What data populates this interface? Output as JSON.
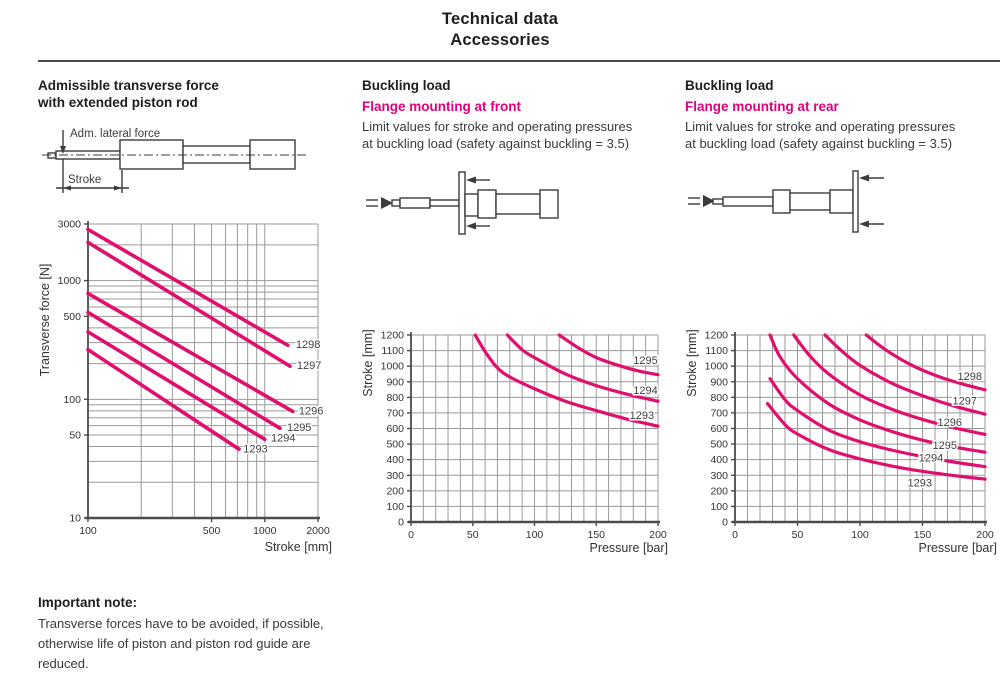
{
  "page": {
    "title_line1": "Technical data",
    "title_line2": "Accessories"
  },
  "colors": {
    "accent": "#e2007d",
    "curve": "#e00f6e",
    "grid": "#9a9a9a",
    "axis": "#4c4c4c",
    "tick_text": "#333333",
    "curve_label_text": "#3f3f3f"
  },
  "sections": {
    "left": {
      "heading_line1": "Admissible transverse force",
      "heading_line2": "with extended piston rod",
      "diagram_labels": {
        "force": "Adm. lateral force",
        "stroke": "Stroke"
      }
    },
    "middle": {
      "heading": "Buckling load",
      "subheading": "Flange mounting at front",
      "desc_line1": "Limit values for stroke and operating pressures",
      "desc_line2": "at buckling load (safety against buckling = 3.5)"
    },
    "right": {
      "heading": "Buckling load",
      "subheading": "Flange mounting at rear",
      "desc_line1": "Limit values for stroke and operating pressures",
      "desc_line2": "at buckling load (safety against buckling = 3.5)"
    },
    "note": {
      "heading": "Important note:",
      "body": "Transverse forces have to be avoided, if possible, otherwise life of piston and piston rod guide are reduced."
    }
  },
  "chart_data": [
    {
      "id": "transverse-force",
      "type": "line",
      "x_scale": "log",
      "y_scale": "log",
      "xlabel": "Stroke [mm]",
      "ylabel": "Transverse force [N]",
      "xlim": [
        100,
        2000
      ],
      "ylim": [
        10,
        3000
      ],
      "x_gridlines": [
        200,
        300,
        400,
        500,
        600,
        700,
        800,
        900,
        1000,
        2000
      ],
      "y_gridlines": [
        20,
        30,
        40,
        50,
        60,
        70,
        80,
        90,
        100,
        200,
        300,
        400,
        500,
        600,
        700,
        800,
        900,
        1000,
        2000,
        3000
      ],
      "x_tick_labels": [
        {
          "v": 100,
          "t": "100"
        },
        {
          "v": 500,
          "t": "500"
        },
        {
          "v": 1000,
          "t": "1000"
        },
        {
          "v": 2000,
          "t": "2000"
        }
      ],
      "y_tick_labels": [
        {
          "v": 3000,
          "t": "3000"
        },
        {
          "v": 1000,
          "t": "1000"
        },
        {
          "v": 500,
          "t": "500"
        },
        {
          "v": 100,
          "t": "100"
        },
        {
          "v": 50,
          "t": "50"
        },
        {
          "v": 10,
          "t": "10"
        }
      ],
      "series": [
        {
          "name": "1293",
          "points": [
            [
              100,
              262
            ],
            [
              715,
              38
            ]
          ],
          "label_at": [
            755,
            38
          ]
        },
        {
          "name": "1294",
          "points": [
            [
              100,
              370
            ],
            [
              1000,
              46
            ]
          ],
          "label_at": [
            1085,
            47
          ]
        },
        {
          "name": "1295",
          "points": [
            [
              100,
              540
            ],
            [
              1220,
              57
            ]
          ],
          "label_at": [
            1335,
            58
          ]
        },
        {
          "name": "1296",
          "points": [
            [
              100,
              780
            ],
            [
              1440,
              79
            ]
          ],
          "label_at": [
            1560,
            80
          ]
        },
        {
          "name": "1297",
          "points": [
            [
              100,
              2100
            ],
            [
              1390,
              190
            ]
          ],
          "label_at": [
            1520,
            193
          ]
        },
        {
          "name": "1298",
          "points": [
            [
              100,
              2700
            ],
            [
              1350,
              285
            ]
          ],
          "label_at": [
            1500,
            290
          ]
        }
      ]
    },
    {
      "id": "buckling-front",
      "type": "line",
      "x_scale": "linear",
      "y_scale": "linear",
      "xlabel": "Pressure [bar]",
      "ylabel": "Stroke [mm]",
      "xlim": [
        0,
        200
      ],
      "ylim": [
        0,
        1200
      ],
      "x_grid_step": 10,
      "y_grid_step": 100,
      "x_tick_labels": [
        {
          "v": 0,
          "t": "0"
        },
        {
          "v": 50,
          "t": "50"
        },
        {
          "v": 100,
          "t": "100"
        },
        {
          "v": 150,
          "t": "150"
        },
        {
          "v": 200,
          "t": "200"
        }
      ],
      "y_tick_labels": [
        {
          "v": 0,
          "t": "0"
        },
        {
          "v": 100,
          "t": "100"
        },
        {
          "v": 200,
          "t": "200"
        },
        {
          "v": 300,
          "t": "300"
        },
        {
          "v": 400,
          "t": "400"
        },
        {
          "v": 500,
          "t": "500"
        },
        {
          "v": 600,
          "t": "600"
        },
        {
          "v": 700,
          "t": "700"
        },
        {
          "v": 800,
          "t": "800"
        },
        {
          "v": 900,
          "t": "900"
        },
        {
          "v": 1000,
          "t": "1000"
        },
        {
          "v": 1100,
          "t": "1100"
        },
        {
          "v": 1200,
          "t": "1200"
        }
      ],
      "series": [
        {
          "name": "1293",
          "points": [
            [
              52,
              1200
            ],
            [
              62,
              1070
            ],
            [
              75,
              955
            ],
            [
              100,
              855
            ],
            [
              125,
              775
            ],
            [
              150,
              715
            ],
            [
              175,
              660
            ],
            [
              200,
              615
            ]
          ],
          "label_at": [
            177,
            685
          ]
        },
        {
          "name": "1294",
          "points": [
            [
              78,
              1200
            ],
            [
              90,
              1105
            ],
            [
              100,
              1055
            ],
            [
              125,
              950
            ],
            [
              150,
              875
            ],
            [
              175,
              820
            ],
            [
              200,
              775
            ]
          ],
          "label_at": [
            180,
            845
          ]
        },
        {
          "name": "1295",
          "points": [
            [
              120,
              1200
            ],
            [
              135,
              1120
            ],
            [
              150,
              1055
            ],
            [
              170,
              1000
            ],
            [
              185,
              968
            ],
            [
              200,
              945
            ]
          ],
          "label_at": [
            180,
            1035
          ]
        }
      ]
    },
    {
      "id": "buckling-rear",
      "type": "line",
      "x_scale": "linear",
      "y_scale": "linear",
      "xlabel": "Pressure [bar]",
      "ylabel": "Stroke [mm]",
      "xlim": [
        0,
        200
      ],
      "ylim": [
        0,
        1200
      ],
      "x_grid_step": 10,
      "y_grid_step": 100,
      "x_tick_labels": [
        {
          "v": 0,
          "t": "0"
        },
        {
          "v": 50,
          "t": "50"
        },
        {
          "v": 100,
          "t": "100"
        },
        {
          "v": 150,
          "t": "150"
        },
        {
          "v": 200,
          "t": "200"
        }
      ],
      "y_tick_labels": [
        {
          "v": 0,
          "t": "0"
        },
        {
          "v": 100,
          "t": "100"
        },
        {
          "v": 200,
          "t": "200"
        },
        {
          "v": 300,
          "t": "300"
        },
        {
          "v": 400,
          "t": "400"
        },
        {
          "v": 500,
          "t": "500"
        },
        {
          "v": 600,
          "t": "600"
        },
        {
          "v": 700,
          "t": "700"
        },
        {
          "v": 800,
          "t": "800"
        },
        {
          "v": 900,
          "t": "900"
        },
        {
          "v": 1000,
          "t": "1000"
        },
        {
          "v": 1100,
          "t": "1100"
        },
        {
          "v": 1200,
          "t": "1200"
        }
      ],
      "series": [
        {
          "name": "1293",
          "points": [
            [
              26,
              760
            ],
            [
              40,
              625
            ],
            [
              50,
              565
            ],
            [
              75,
              465
            ],
            [
              100,
              405
            ],
            [
              125,
              360
            ],
            [
              150,
              325
            ],
            [
              175,
              298
            ],
            [
              200,
              275
            ]
          ],
          "label_at": [
            138,
            250
          ]
        },
        {
          "name": "1294",
          "points": [
            [
              28,
              920
            ],
            [
              40,
              785
            ],
            [
              50,
              715
            ],
            [
              75,
              590
            ],
            [
              100,
              515
            ],
            [
              125,
              462
            ],
            [
              150,
              420
            ],
            [
              175,
              385
            ],
            [
              200,
              355
            ]
          ],
          "label_at": [
            147,
            410
          ]
        },
        {
          "name": "1295",
          "points": [
            [
              28,
              1200
            ],
            [
              36,
              1060
            ],
            [
              50,
              920
            ],
            [
              75,
              758
            ],
            [
              100,
              655
            ],
            [
              125,
              582
            ],
            [
              150,
              525
            ],
            [
              175,
              482
            ],
            [
              200,
              448
            ]
          ],
          "label_at": [
            158,
            490
          ]
        },
        {
          "name": "1296",
          "points": [
            [
              47,
              1200
            ],
            [
              60,
              1065
            ],
            [
              75,
              950
            ],
            [
              100,
              815
            ],
            [
              125,
              725
            ],
            [
              150,
              658
            ],
            [
              175,
              605
            ],
            [
              200,
              562
            ]
          ],
          "label_at": [
            162,
            640
          ]
        },
        {
          "name": "1297",
          "points": [
            [
              72,
              1200
            ],
            [
              85,
              1100
            ],
            [
              100,
              1005
            ],
            [
              125,
              892
            ],
            [
              150,
              810
            ],
            [
              175,
              745
            ],
            [
              200,
              692
            ]
          ],
          "label_at": [
            174,
            775
          ]
        },
        {
          "name": "1298",
          "points": [
            [
              105,
              1200
            ],
            [
              120,
              1108
            ],
            [
              140,
              1012
            ],
            [
              160,
              942
            ],
            [
              180,
              890
            ],
            [
              200,
              848
            ]
          ],
          "label_at": [
            178,
            935
          ]
        }
      ]
    }
  ]
}
